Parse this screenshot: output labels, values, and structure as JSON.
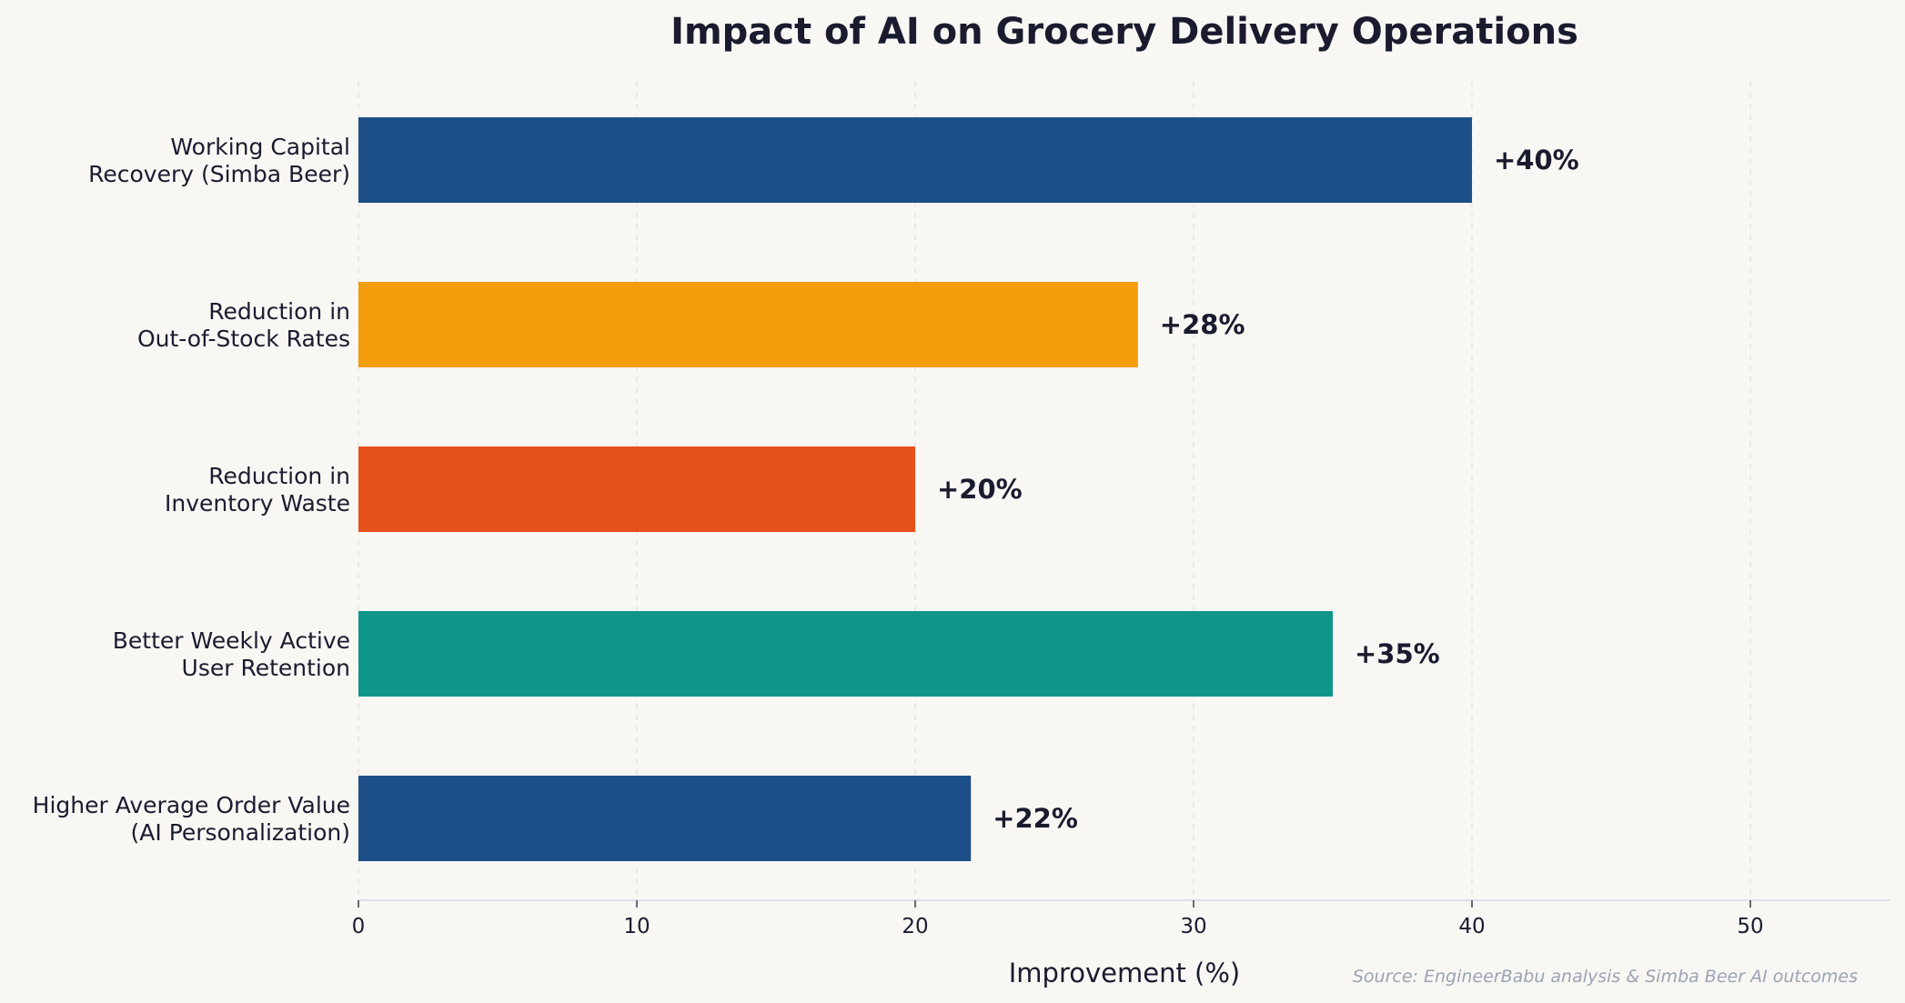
{
  "chart_data": {
    "type": "bar",
    "orientation": "horizontal",
    "title": "Impact of AI on Grocery Delivery Operations",
    "xlabel": "Improvement (%)",
    "ylabel": "",
    "xlim": [
      0,
      55
    ],
    "xticks": [
      0,
      10,
      20,
      30,
      40,
      50
    ],
    "grid": "x-dashed",
    "categories": [
      [
        "Working Capital",
        "Recovery (Simba Beer)"
      ],
      [
        "Reduction in",
        "Out-of-Stock Rates"
      ],
      [
        "Reduction in",
        "Inventory Waste"
      ],
      [
        "Better Weekly Active",
        "User Retention"
      ],
      [
        "Higher Average Order Value",
        "(AI Personalization)"
      ]
    ],
    "values": [
      40,
      28,
      20,
      35,
      22
    ],
    "value_labels": [
      "+40%",
      "+28%",
      "+20%",
      "+35%",
      "+22%"
    ],
    "colors": [
      "#1c4f88",
      "#f39c0c",
      "#e6501a",
      "#0e968a",
      "#1c4f88"
    ],
    "source": "Source: EngineerBabu analysis & Simba Beer AI outcomes"
  }
}
